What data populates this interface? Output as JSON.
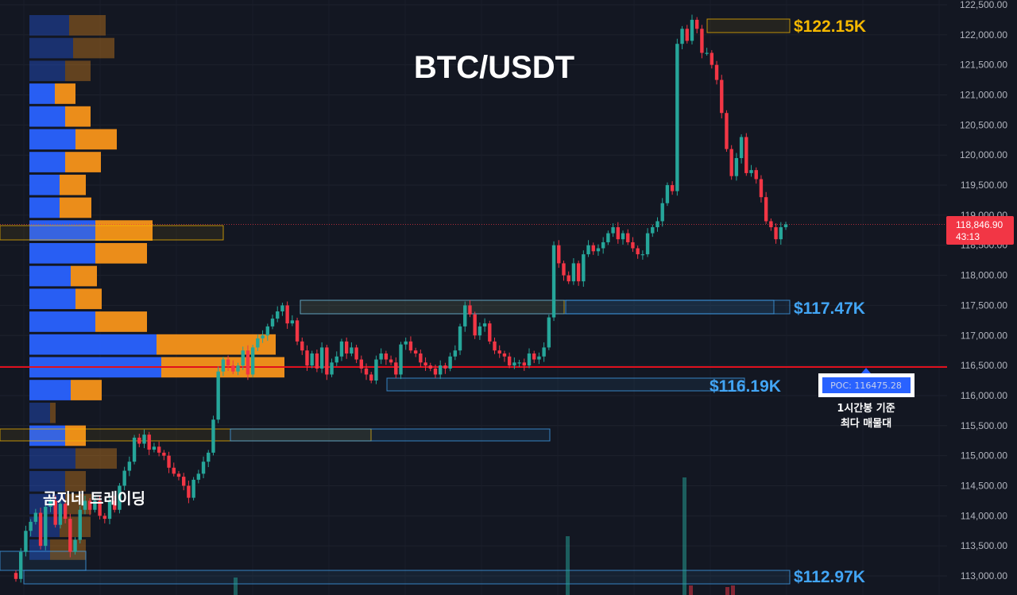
{
  "title": "BTC/USDT",
  "watermark": "곰지네 트레이딩",
  "current_price": {
    "label": "118,846.90",
    "timer": "43:13",
    "value": 118846.9,
    "color": "#f23645"
  },
  "poc": {
    "label": "POC: 116475.28",
    "value": 116475.28,
    "note_line1": "1시간봉 기준",
    "note_line2": "최다 매물대"
  },
  "levels": [
    {
      "text": "$122.15K",
      "value": 122150,
      "color": "#f5b800"
    },
    {
      "text": "$117.47K",
      "value": 117470,
      "color": "#42a5f5"
    },
    {
      "text": "$116.19K",
      "value": 116190,
      "color": "#42a5f5"
    },
    {
      "text": "$112.97K",
      "value": 112970,
      "color": "#42a5f5"
    }
  ],
  "colors": {
    "up": "#26a69a",
    "down": "#f23645",
    "profile_blue": "#2962ff",
    "profile_orange": "#f7931a",
    "poc_line": "#e0101e"
  },
  "chart_data": {
    "type": "candlestick",
    "symbol": "BTC/USDT",
    "interval_note": "1시간봉",
    "ylim": [
      112800,
      122560
    ],
    "yticks": [
      113000,
      113500,
      114000,
      114500,
      115000,
      115500,
      116000,
      116500,
      117000,
      117500,
      118000,
      118500,
      119000,
      119500,
      120000,
      120500,
      121000,
      121500,
      122000,
      122500
    ],
    "close": [
      112950,
      113400,
      113750,
      113900,
      114050,
      113500,
      114150,
      114250,
      113850,
      114200,
      113950,
      113400,
      113600,
      114100,
      114250,
      114100,
      114250,
      114000,
      113950,
      114250,
      114100,
      114500,
      114750,
      114900,
      115300,
      115200,
      115350,
      115100,
      115150,
      115050,
      115000,
      114800,
      114700,
      114650,
      114500,
      114300,
      114600,
      114700,
      114900,
      115050,
      115600,
      116400,
      116600,
      116500,
      116400,
      116500,
      116750,
      116350,
      116800,
      116950,
      117000,
      117150,
      117280,
      117400,
      117500,
      117200,
      117250,
      116900,
      116750,
      116500,
      116700,
      116450,
      116800,
      116350,
      116550,
      116650,
      116900,
      116700,
      116800,
      116600,
      116450,
      116350,
      116250,
      116600,
      116700,
      116600,
      116550,
      116350,
      116850,
      116900,
      116750,
      116700,
      116550,
      116500,
      116450,
      116350,
      116500,
      116450,
      116650,
      116750,
      117150,
      117500,
      117350,
      117000,
      117150,
      117200,
      116900,
      116750,
      116700,
      116650,
      116500,
      116550,
      116550,
      116500,
      116700,
      116600,
      116650,
      116800,
      117300,
      118500,
      118200,
      118000,
      117900,
      118200,
      117900,
      118350,
      118500,
      118400,
      118450,
      118550,
      118700,
      118800,
      118600,
      118700,
      118550,
      118450,
      118350,
      118350,
      118700,
      118800,
      118900,
      119200,
      119500,
      119400,
      121850,
      122100,
      121900,
      122250,
      122100,
      121700,
      121700,
      121500,
      121250,
      120700,
      120100,
      119650,
      119950,
      120300,
      119700,
      119750,
      119600,
      119300,
      118900,
      118800,
      118600,
      118800,
      118846.9
    ],
    "volume_profile": {
      "row_height": 28.7,
      "rows": [
        {
          "blue": 50,
          "orange": 46
        },
        {
          "blue": 55,
          "orange": 52
        },
        {
          "blue": 45,
          "orange": 32
        },
        {
          "blue": 32,
          "orange": 26
        },
        {
          "blue": 45,
          "orange": 32
        },
        {
          "blue": 58,
          "orange": 52
        },
        {
          "blue": 45,
          "orange": 45
        },
        {
          "blue": 38,
          "orange": 33
        },
        {
          "blue": 38,
          "orange": 40
        },
        {
          "blue": 83,
          "orange": 72
        },
        {
          "blue": 83,
          "orange": 65
        },
        {
          "blue": 52,
          "orange": 33
        },
        {
          "blue": 58,
          "orange": 33
        },
        {
          "blue": 83,
          "orange": 65
        },
        {
          "blue": 160,
          "orange": 150
        },
        {
          "blue": 166,
          "orange": 155
        },
        {
          "blue": 52,
          "orange": 39
        },
        {
          "blue": 26,
          "orange": 7
        },
        {
          "blue": 45,
          "orange": 26
        },
        {
          "blue": 58,
          "orange": 52
        },
        {
          "blue": 45,
          "orange": 26
        },
        {
          "blue": 45,
          "orange": 33
        },
        {
          "blue": 38,
          "orange": 39
        },
        {
          "blue": 26,
          "orange": 45
        }
      ]
    }
  }
}
